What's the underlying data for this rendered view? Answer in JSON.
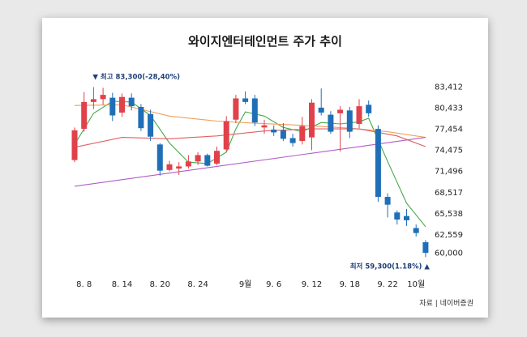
{
  "title": "와이지엔터테인먼트 주가 추이",
  "source": "자료 | 네이버증권",
  "chart_data": {
    "type": "candlestick",
    "title": "와이지엔터테인먼트 주가 추이",
    "y_ticks": [
      "83,412",
      "80,433",
      "77,454",
      "74,475",
      "71,496",
      "68,517",
      "65,538",
      "62,559",
      "60,000"
    ],
    "y_tick_values": [
      83412,
      80433,
      77454,
      74475,
      71496,
      68517,
      65538,
      62559,
      60000
    ],
    "ylim": [
      59000,
      84500
    ],
    "x_ticks": [
      {
        "label": "8. 8",
        "index": 1
      },
      {
        "label": "8. 14",
        "index": 5
      },
      {
        "label": "8. 20",
        "index": 9
      },
      {
        "label": "8. 24",
        "index": 13
      },
      {
        "label": "9월",
        "index": 18
      },
      {
        "label": "9. 6",
        "index": 21
      },
      {
        "label": "9. 12",
        "index": 25
      },
      {
        "label": "9. 18",
        "index": 29
      },
      {
        "label": "9. 22",
        "index": 33
      },
      {
        "label": "10월",
        "index": 36
      }
    ],
    "candles": [
      {
        "o": 73000,
        "c": 77200,
        "h": 77600,
        "l": 72700
      },
      {
        "o": 77400,
        "c": 81200,
        "h": 82600,
        "l": 77000
      },
      {
        "o": 81200,
        "c": 81600,
        "h": 83300,
        "l": 80200
      },
      {
        "o": 81600,
        "c": 82200,
        "h": 83200,
        "l": 80800
      },
      {
        "o": 81800,
        "c": 79300,
        "h": 82500,
        "l": 78500
      },
      {
        "o": 79700,
        "c": 81900,
        "h": 82400,
        "l": 79100
      },
      {
        "o": 81800,
        "c": 80600,
        "h": 82400,
        "l": 80000
      },
      {
        "o": 80500,
        "c": 77500,
        "h": 80900,
        "l": 77100
      },
      {
        "o": 79500,
        "c": 76300,
        "h": 80100,
        "l": 75700
      },
      {
        "o": 75200,
        "c": 71500,
        "h": 75400,
        "l": 70800
      },
      {
        "o": 71600,
        "c": 72400,
        "h": 72900,
        "l": 71400
      },
      {
        "o": 71800,
        "c": 72100,
        "h": 72700,
        "l": 70900
      },
      {
        "o": 72100,
        "c": 72800,
        "h": 73700,
        "l": 71800
      },
      {
        "o": 72800,
        "c": 73700,
        "h": 74100,
        "l": 72300
      },
      {
        "o": 73700,
        "c": 72200,
        "h": 73900,
        "l": 72100
      },
      {
        "o": 72500,
        "c": 74300,
        "h": 74900,
        "l": 72300
      },
      {
        "o": 74500,
        "c": 78500,
        "h": 79200,
        "l": 74200
      },
      {
        "o": 78700,
        "c": 81700,
        "h": 82200,
        "l": 78200
      },
      {
        "o": 81700,
        "c": 81200,
        "h": 82700,
        "l": 80900
      },
      {
        "o": 81700,
        "c": 78300,
        "h": 82200,
        "l": 77800
      },
      {
        "o": 77600,
        "c": 77900,
        "h": 78700,
        "l": 76700
      },
      {
        "o": 77300,
        "c": 76900,
        "h": 77900,
        "l": 76400
      },
      {
        "o": 77200,
        "c": 76000,
        "h": 78200,
        "l": 75700
      },
      {
        "o": 76100,
        "c": 75400,
        "h": 76700,
        "l": 74900
      },
      {
        "o": 75700,
        "c": 77800,
        "h": 79100,
        "l": 75200
      },
      {
        "o": 76200,
        "c": 81100,
        "h": 81600,
        "l": 74400
      },
      {
        "o": 80400,
        "c": 79700,
        "h": 83100,
        "l": 79300
      },
      {
        "o": 79400,
        "c": 77000,
        "h": 79900,
        "l": 76700
      },
      {
        "o": 79600,
        "c": 80100,
        "h": 80600,
        "l": 74200
      },
      {
        "o": 80000,
        "c": 77000,
        "h": 80500,
        "l": 76100
      },
      {
        "o": 78100,
        "c": 80600,
        "h": 81600,
        "l": 77500
      },
      {
        "o": 80800,
        "c": 79600,
        "h": 81400,
        "l": 79100
      },
      {
        "o": 77400,
        "c": 67800,
        "h": 77900,
        "l": 67100
      },
      {
        "o": 67800,
        "c": 66700,
        "h": 68300,
        "l": 64900
      },
      {
        "o": 65600,
        "c": 64600,
        "h": 65900,
        "l": 63900
      },
      {
        "o": 65100,
        "c": 64500,
        "h": 66100,
        "l": 63700
      },
      {
        "o": 63400,
        "c": 62700,
        "h": 63900,
        "l": 62200
      },
      {
        "o": 61400,
        "c": 59900,
        "h": 61700,
        "l": 59300
      }
    ],
    "lines": [
      {
        "color": "#47a84a",
        "values": [
          [
            0,
            75200
          ],
          [
            2,
            79600
          ],
          [
            4,
            81300
          ],
          [
            6,
            81200
          ],
          [
            8,
            79300
          ],
          [
            10,
            75400
          ],
          [
            12,
            72700
          ],
          [
            14,
            72500
          ],
          [
            16,
            74100
          ],
          [
            17,
            77400
          ],
          [
            18,
            79800
          ],
          [
            20,
            79200
          ],
          [
            22,
            77600
          ],
          [
            24,
            77000
          ],
          [
            26,
            78300
          ],
          [
            28,
            78100
          ],
          [
            30,
            78400
          ],
          [
            31,
            78900
          ],
          [
            33,
            72800
          ],
          [
            35,
            66900
          ],
          [
            37,
            63600
          ]
        ]
      },
      {
        "color": "#f0a05a",
        "values": [
          [
            0,
            80700
          ],
          [
            5,
            80800
          ],
          [
            10,
            79200
          ],
          [
            15,
            78500
          ],
          [
            19,
            78200
          ],
          [
            24,
            77900
          ],
          [
            29,
            77500
          ],
          [
            33,
            77000
          ],
          [
            37,
            76200
          ]
        ]
      },
      {
        "color": "#e06060",
        "values": [
          [
            0,
            74800
          ],
          [
            5,
            76200
          ],
          [
            10,
            76000
          ],
          [
            15,
            76400
          ],
          [
            20,
            77100
          ],
          [
            25,
            77400
          ],
          [
            30,
            77400
          ],
          [
            34,
            76400
          ],
          [
            37,
            74900
          ]
        ]
      },
      {
        "color": "#b05cc8",
        "values": [
          [
            0,
            69300
          ],
          [
            37,
            76200
          ]
        ]
      }
    ],
    "annotations": [
      {
        "text": "▼ 최고 83,300(-28,40%)",
        "index": 2.6,
        "value": 83300
      },
      {
        "text": "최저 59,300(1.18%) ▲",
        "index": 37,
        "value": 59300
      }
    ],
    "up_color": "#e0414a",
    "down_color": "#1f6fb8"
  }
}
